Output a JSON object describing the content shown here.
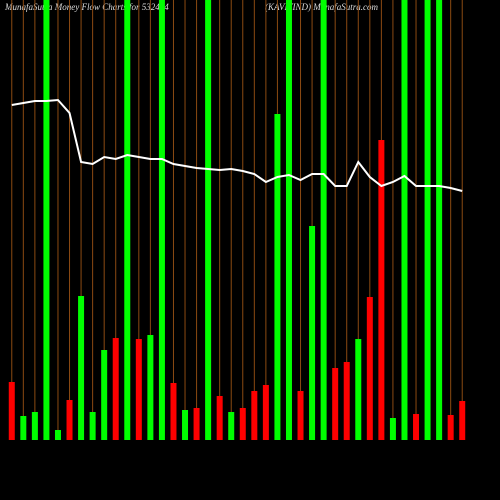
{
  "chart_data": {
    "type": "bar",
    "title": "MunafaSutra  Money Flow  Charts for 532444",
    "subtitle": "(KAVITIND) MunafaSutra.com",
    "values": [
      58,
      24,
      28,
      440,
      10,
      40,
      144,
      28,
      90,
      102,
      440,
      101,
      105,
      440,
      57,
      30,
      32,
      440,
      44,
      28,
      32,
      49,
      55,
      326,
      440,
      49,
      214,
      440,
      72,
      78,
      101,
      143,
      300,
      22,
      440,
      26,
      440,
      440,
      25,
      39
    ],
    "bar_colors": [
      "#ff0000",
      "#00ff00",
      "#00ff00",
      "#00ff00",
      "#00ff00",
      "#ff0000",
      "#00ff00",
      "#00ff00",
      "#00ff00",
      "#ff0000",
      "#00ff00",
      "#ff0000",
      "#00ff00",
      "#00ff00",
      "#ff0000",
      "#00ff00",
      "#ff0000",
      "#00ff00",
      "#ff0000",
      "#00ff00",
      "#ff0000",
      "#ff0000",
      "#ff0000",
      "#00ff00",
      "#00ff00",
      "#ff0000",
      "#00ff00",
      "#00ff00",
      "#ff0000",
      "#ff0000",
      "#00ff00",
      "#ff0000",
      "#ff0000",
      "#00ff00",
      "#00ff00",
      "#ff0000",
      "#00ff00",
      "#00ff00",
      "#ff0000",
      "#ff0000"
    ],
    "line": {
      "color": "#ffffff",
      "values": [
        335,
        337,
        339,
        339,
        340,
        327,
        278,
        276,
        283,
        281,
        285,
        283,
        281,
        281,
        276,
        274,
        272,
        271,
        270,
        271,
        269,
        266,
        258,
        263,
        265,
        260,
        266,
        266,
        254,
        254,
        278,
        263,
        254,
        258,
        264,
        254,
        254,
        254,
        252,
        249
      ]
    },
    "ylim": [
      0,
      440
    ],
    "grid_color": "#8b4a12"
  }
}
